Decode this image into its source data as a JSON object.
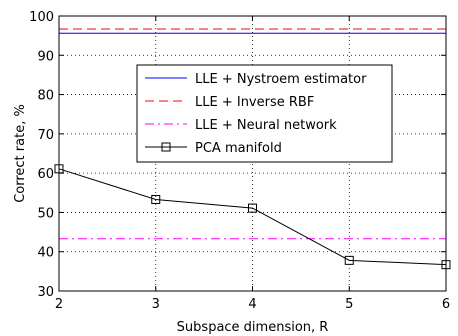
{
  "chart_data": {
    "type": "line",
    "xlabel": "Subspace dimension, R",
    "ylabel": "Correct rate, %",
    "xlim": [
      2,
      6
    ],
    "ylim": [
      30,
      100
    ],
    "xticks": [
      "2",
      "3",
      "4",
      "5",
      "6"
    ],
    "yticks": [
      "30",
      "40",
      "50",
      "60",
      "70",
      "80",
      "90",
      "100"
    ],
    "grid": true,
    "legend_position": "center",
    "series": [
      {
        "name": "LLE + Nystroem estimator",
        "color": "#0000ff",
        "dash": "solid",
        "marker": "none",
        "x": [
          2,
          6
        ],
        "y": [
          95.6,
          95.6
        ]
      },
      {
        "name": "LLE + Inverse RBF",
        "color": "#ff0000",
        "dash": "dashed",
        "marker": "none",
        "x": [
          2,
          6
        ],
        "y": [
          96.7,
          96.7
        ]
      },
      {
        "name": "LLE + Neural network",
        "color": "#ff00ff",
        "dash": "dashdot",
        "marker": "none",
        "x": [
          2,
          6
        ],
        "y": [
          43.3,
          43.3
        ]
      },
      {
        "name": "PCA manifold",
        "color": "#000000",
        "dash": "solid",
        "marker": "square",
        "x": [
          2,
          3,
          4,
          5,
          6
        ],
        "y": [
          61.1,
          53.3,
          51.1,
          37.8,
          36.7
        ]
      }
    ]
  }
}
